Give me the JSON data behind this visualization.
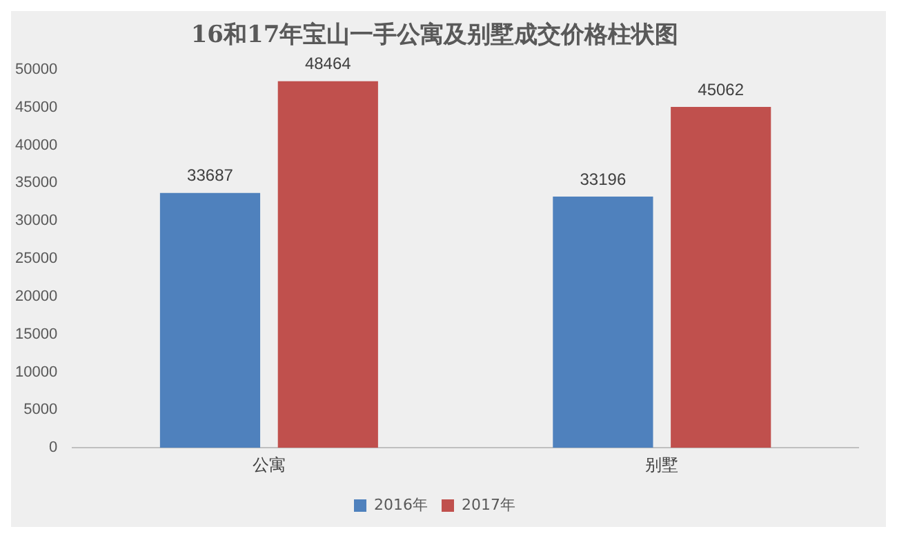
{
  "chart_data": {
    "type": "bar",
    "title": "16和17年宝山一手公寓及别墅成交价格柱状图",
    "categories": [
      "公寓",
      "别墅"
    ],
    "series": [
      {
        "name": "2016年",
        "color": "#4f81bd",
        "values": [
          33687,
          33196
        ]
      },
      {
        "name": "2017年",
        "color": "#c0504d",
        "values": [
          48464,
          45062
        ]
      }
    ],
    "ylim": [
      0,
      50000
    ],
    "yticks": [
      0,
      5000,
      10000,
      15000,
      20000,
      25000,
      30000,
      35000,
      40000,
      45000,
      50000
    ],
    "grid": false,
    "legend": "bottom",
    "data_labels": true
  }
}
